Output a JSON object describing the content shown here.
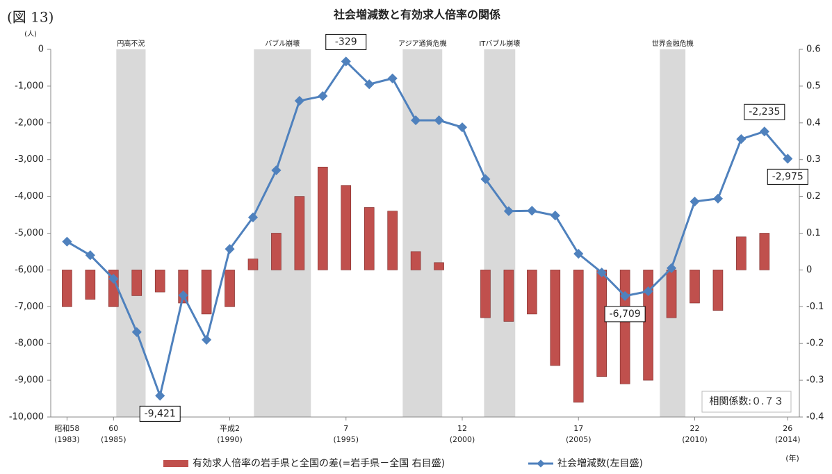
{
  "chart_data": {
    "type": "bar+line",
    "figure_label": "(図 13)",
    "title": "社会増減数と有効求人倍率の関係",
    "y_unit": "(人)",
    "x_unit": "(年)",
    "annotation": "相関係数:０.７３",
    "x": [
      1983,
      1984,
      1985,
      1986,
      1987,
      1988,
      1989,
      1990,
      1991,
      1992,
      1993,
      1994,
      1995,
      1996,
      1997,
      1998,
      1999,
      2000,
      2001,
      2002,
      2003,
      2004,
      2005,
      2006,
      2007,
      2008,
      2009,
      2010,
      2011,
      2012,
      2013,
      2014
    ],
    "xlim": [
      1982.3,
      2014.5
    ],
    "xticks": [
      {
        "value": 1983,
        "label": "昭和58",
        "sublabel": "(1983)"
      },
      {
        "value": 1985,
        "label": "60",
        "sublabel": "(1985)"
      },
      {
        "value": 1990,
        "label": "平成2",
        "sublabel": "(1990)"
      },
      {
        "value": 1995,
        "label": "7",
        "sublabel": "(1995)"
      },
      {
        "value": 2000,
        "label": "12",
        "sublabel": "(2000)"
      },
      {
        "value": 2005,
        "label": "17",
        "sublabel": "(2005)"
      },
      {
        "value": 2010,
        "label": "22",
        "sublabel": "(2010)"
      },
      {
        "value": 2014,
        "label": "26",
        "sublabel": "(2014)"
      }
    ],
    "ylim": [
      -10000,
      0
    ],
    "yticks": [
      {
        "value": 0,
        "label": "0"
      },
      {
        "value": -1000,
        "label": "-1,000"
      },
      {
        "value": -2000,
        "label": "-2,000"
      },
      {
        "value": -3000,
        "label": "-3,000"
      },
      {
        "value": -4000,
        "label": "-4,000"
      },
      {
        "value": -5000,
        "label": "-5,000"
      },
      {
        "value": -6000,
        "label": "-6,000"
      },
      {
        "value": -7000,
        "label": "-7,000"
      },
      {
        "value": -8000,
        "label": "-8,000"
      },
      {
        "value": -9000,
        "label": "-9,000"
      },
      {
        "value": -10000,
        "label": "-10,000"
      }
    ],
    "y2lim": [
      -0.4,
      0.6
    ],
    "y2ticks": [
      0.6,
      0.5,
      0.4,
      0.3,
      0.2,
      0.1,
      0,
      -0.1,
      -0.2,
      -0.3,
      -0.4
    ],
    "shaded_periods": [
      {
        "label": "円高不況",
        "start": 1985.12,
        "end": 1986.38
      },
      {
        "label": "バブル崩壊",
        "start": 1991.04,
        "end": 1993.49
      },
      {
        "label": "アジア通貨危機",
        "start": 1997.44,
        "end": 1999.14
      },
      {
        "label": "ITバブル崩壊",
        "start": 2000.94,
        "end": 2002.28
      },
      {
        "label": "世界金融危機",
        "start": 2008.5,
        "end": 2009.6
      }
    ],
    "series": [
      {
        "name": "有効求人倍率の岩手県と全国の差(=岩手県－全国 右目盛)",
        "type": "bar",
        "axis": "y2",
        "color": "#c0504d",
        "values": [
          -0.1,
          -0.08,
          -0.1,
          -0.07,
          -0.06,
          -0.09,
          -0.12,
          -0.1,
          0.03,
          0.1,
          0.2,
          0.28,
          0.23,
          0.17,
          0.16,
          0.05,
          0.02,
          0,
          -0.13,
          -0.14,
          -0.12,
          -0.26,
          -0.36,
          -0.29,
          -0.31,
          -0.3,
          -0.13,
          -0.09,
          -0.11,
          0.09,
          0.1,
          0
        ]
      },
      {
        "name": "社会増減数(左目盛)",
        "type": "line",
        "axis": "y",
        "color": "#4f81bd",
        "values": [
          -5230,
          -5600,
          -6240,
          -7690,
          -9421,
          -6690,
          -7900,
          -5430,
          -4570,
          -3290,
          -1400,
          -1270,
          -329,
          -950,
          -790,
          -1930,
          -1930,
          -2120,
          -3530,
          -4400,
          -4390,
          -4520,
          -5560,
          -6070,
          -6709,
          -6580,
          -5950,
          -4140,
          -4060,
          -2440,
          -2235,
          -2975
        ],
        "value_labels": [
          null,
          null,
          null,
          null,
          "-9,421",
          null,
          null,
          null,
          null,
          null,
          null,
          null,
          "-329",
          null,
          null,
          null,
          null,
          null,
          null,
          null,
          null,
          null,
          null,
          null,
          "-6,709",
          null,
          null,
          null,
          null,
          null,
          "-2,235",
          "-2,975"
        ]
      }
    ]
  }
}
